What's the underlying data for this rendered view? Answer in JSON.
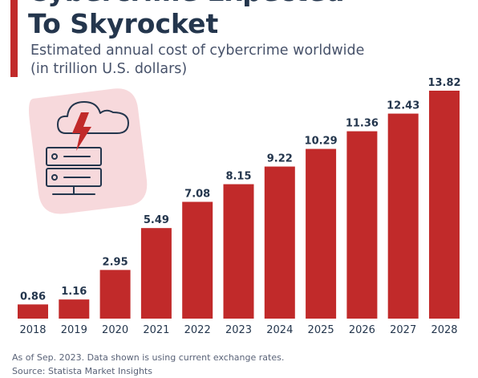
{
  "header": {
    "title_lines": [
      "Cybercrime Expected",
      "To Skyrocket"
    ],
    "subtitle_lines": [
      "Estimated annual cost of cybercrime worldwide",
      "(in trillion U.S. dollars)"
    ]
  },
  "illustration": {
    "icon": "server-cloud-lightning-icon"
  },
  "colors": {
    "accent": "#c12a2a",
    "bar": "#c12a2a",
    "text": "#24364d",
    "badge_bg": "#f7d9dc"
  },
  "chart_data": {
    "type": "bar",
    "title": "Estimated annual cost of cybercrime worldwide",
    "ylabel": "(in trillion U.S. dollars)",
    "categories": [
      "2018",
      "2019",
      "2020",
      "2021",
      "2022",
      "2023",
      "2024",
      "2025",
      "2026",
      "2027",
      "2028"
    ],
    "values": [
      0.86,
      1.16,
      2.95,
      5.49,
      7.08,
      8.15,
      9.22,
      10.29,
      11.36,
      12.43,
      13.82
    ],
    "value_labels": [
      "0.86",
      "1.16",
      "2.95",
      "5.49",
      "7.08",
      "8.15",
      "9.22",
      "10.29",
      "11.36",
      "12.43",
      "13.82"
    ],
    "ylim": [
      0,
      13.82
    ],
    "grid": false,
    "data_labels": "above-bars"
  },
  "footer": {
    "note": "As of Sep. 2023. Data shown is using current exchange rates.",
    "source": "Source: Statista Market Insights"
  }
}
